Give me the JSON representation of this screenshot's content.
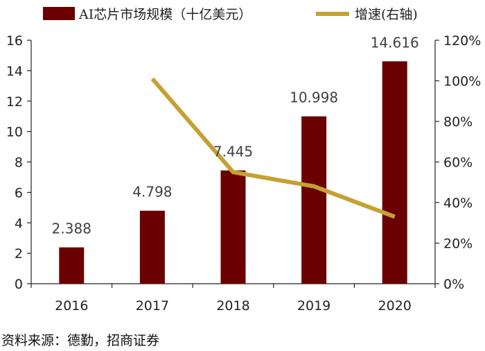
{
  "chart_data": {
    "type": "bar",
    "categories": [
      "2016",
      "2017",
      "2018",
      "2019",
      "2020"
    ],
    "series": [
      {
        "name": "AI芯片市场规模（十亿美元）",
        "kind": "bar",
        "axis": "left",
        "values": [
          2.388,
          4.798,
          7.445,
          10.998,
          14.616
        ],
        "labels": [
          "2.388",
          "4.798",
          "7.445",
          "10.998",
          "14.616"
        ],
        "color": "#6b0000"
      },
      {
        "name": "增速(右轴)",
        "kind": "line",
        "axis": "right",
        "values": [
          null,
          101,
          55,
          48,
          33
        ],
        "color": "#c5a132"
      }
    ],
    "y_left": {
      "min": 0,
      "max": 16,
      "step": 2,
      "ticks": [
        "0",
        "2",
        "4",
        "6",
        "8",
        "10",
        "12",
        "14",
        "16"
      ]
    },
    "y_right": {
      "min": 0,
      "max": 120,
      "step": 20,
      "ticks": [
        "0%",
        "20%",
        "40%",
        "60%",
        "80%",
        "100%",
        "120%"
      ]
    },
    "legend_position": "top",
    "grid": false
  },
  "source_text": "资料来源：德勤，招商证券"
}
